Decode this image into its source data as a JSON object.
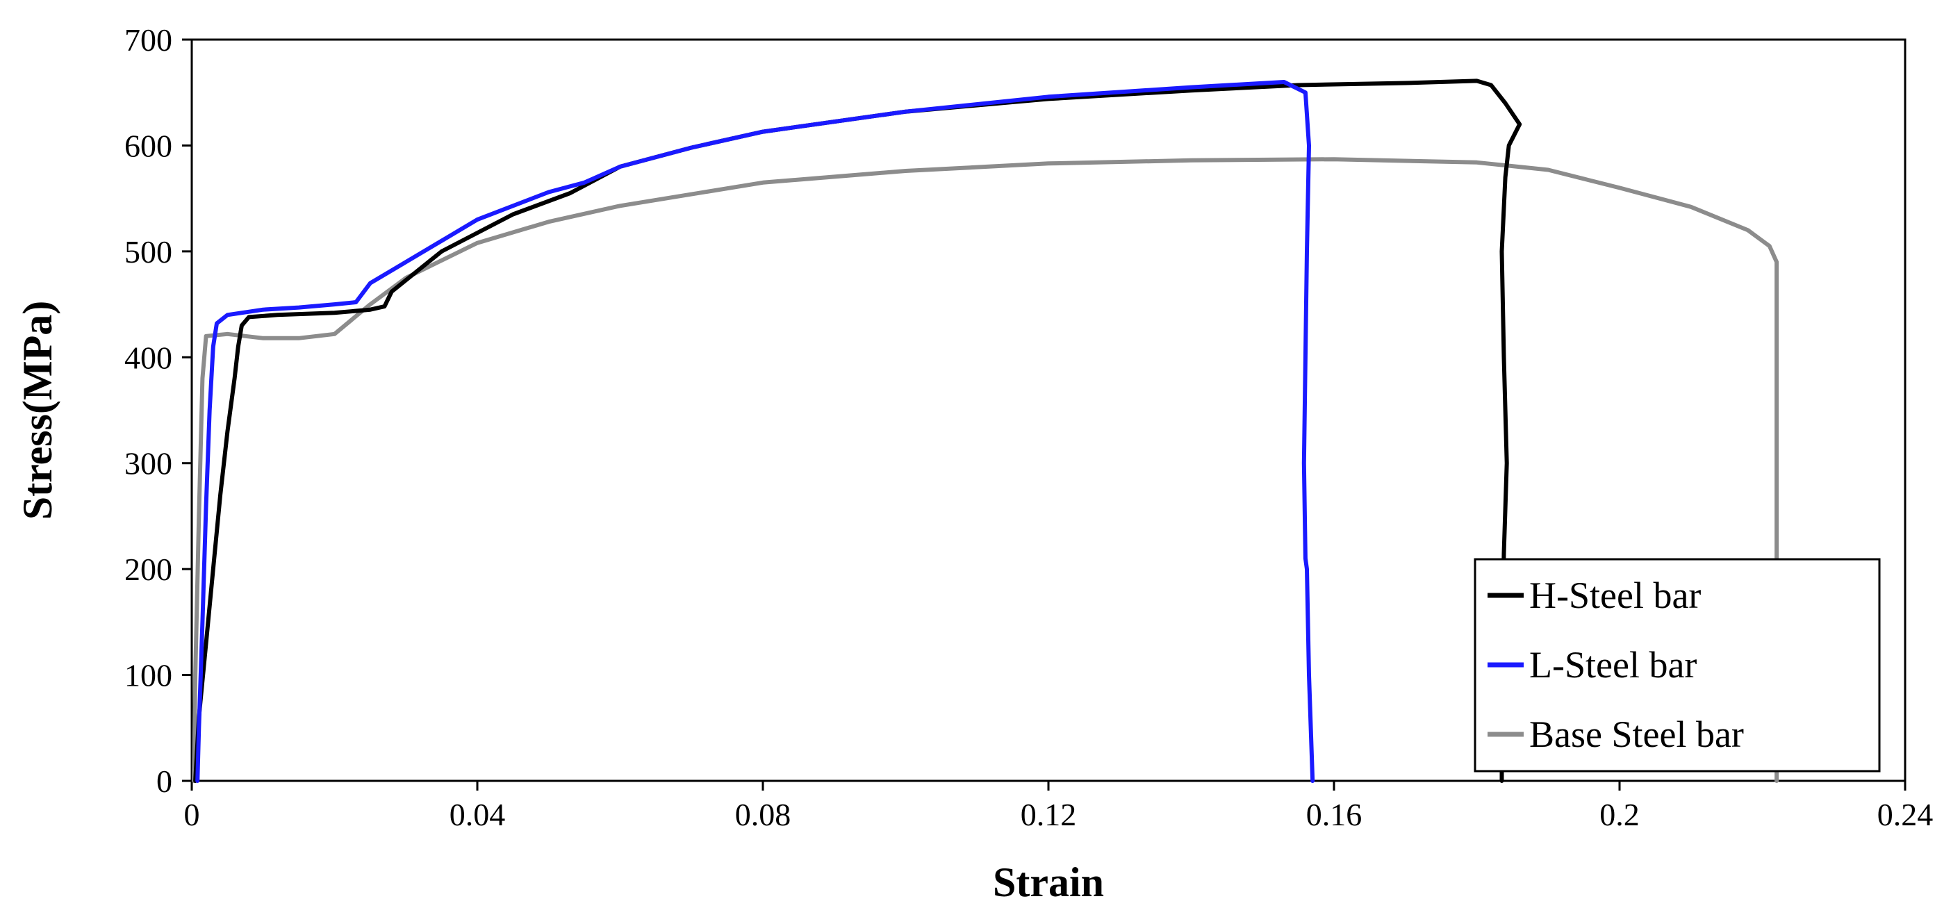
{
  "chart_data": {
    "type": "line",
    "title": "",
    "xlabel": "Strain",
    "ylabel": "Stress(MPa)",
    "xlim": [
      0,
      0.24
    ],
    "ylim": [
      0,
      700
    ],
    "x_ticks": [
      0,
      0.04,
      0.08,
      0.12,
      0.16,
      0.2,
      0.24
    ],
    "x_tick_labels": [
      "0",
      "0.04",
      "0.08",
      "0.12",
      "0.16",
      "0.2",
      "0.24"
    ],
    "y_ticks": [
      0,
      100,
      200,
      300,
      400,
      500,
      600,
      700
    ],
    "y_tick_labels": [
      "0",
      "100",
      "200",
      "300",
      "400",
      "500",
      "600",
      "700"
    ],
    "grid": false,
    "legend_position": "bottom-right",
    "series": [
      {
        "name": "H-Steel bar",
        "color": "#000000",
        "points": [
          [
            0.0005,
            0
          ],
          [
            0.001,
            60
          ],
          [
            0.002,
            130
          ],
          [
            0.003,
            200
          ],
          [
            0.004,
            270
          ],
          [
            0.005,
            330
          ],
          [
            0.006,
            380
          ],
          [
            0.0065,
            410
          ],
          [
            0.007,
            430
          ],
          [
            0.008,
            438
          ],
          [
            0.012,
            440
          ],
          [
            0.02,
            442
          ],
          [
            0.025,
            445
          ],
          [
            0.027,
            448
          ],
          [
            0.028,
            462
          ],
          [
            0.035,
            500
          ],
          [
            0.045,
            535
          ],
          [
            0.053,
            555
          ],
          [
            0.06,
            580
          ],
          [
            0.07,
            598
          ],
          [
            0.08,
            613
          ],
          [
            0.1,
            632
          ],
          [
            0.12,
            644
          ],
          [
            0.14,
            652
          ],
          [
            0.155,
            657
          ],
          [
            0.17,
            659
          ],
          [
            0.18,
            661
          ],
          [
            0.182,
            657
          ],
          [
            0.184,
            640
          ],
          [
            0.186,
            620
          ],
          [
            0.1845,
            600
          ],
          [
            0.184,
            570
          ],
          [
            0.1835,
            500
          ],
          [
            0.1838,
            400
          ],
          [
            0.1842,
            300
          ],
          [
            0.1838,
            215
          ],
          [
            0.1835,
            100
          ],
          [
            0.1835,
            0
          ]
        ]
      },
      {
        "name": "L-Steel bar",
        "color": "#1a1aff",
        "points": [
          [
            0.0008,
            0
          ],
          [
            0.001,
            50
          ],
          [
            0.0015,
            150
          ],
          [
            0.002,
            260
          ],
          [
            0.0025,
            350
          ],
          [
            0.003,
            410
          ],
          [
            0.0035,
            432
          ],
          [
            0.005,
            440
          ],
          [
            0.01,
            445
          ],
          [
            0.015,
            447
          ],
          [
            0.02,
            450
          ],
          [
            0.023,
            452
          ],
          [
            0.025,
            470
          ],
          [
            0.03,
            490
          ],
          [
            0.04,
            530
          ],
          [
            0.05,
            556
          ],
          [
            0.055,
            565
          ],
          [
            0.06,
            580
          ],
          [
            0.07,
            598
          ],
          [
            0.08,
            613
          ],
          [
            0.1,
            632
          ],
          [
            0.12,
            646
          ],
          [
            0.14,
            655
          ],
          [
            0.153,
            660
          ],
          [
            0.1545,
            655
          ],
          [
            0.156,
            650
          ],
          [
            0.1565,
            600
          ],
          [
            0.1562,
            500
          ],
          [
            0.156,
            400
          ],
          [
            0.1558,
            300
          ],
          [
            0.156,
            210
          ],
          [
            0.1562,
            200
          ],
          [
            0.1565,
            100
          ],
          [
            0.157,
            0
          ]
        ]
      },
      {
        "name": "Base Steel bar",
        "color": "#8c8c8c",
        "points": [
          [
            0.0003,
            0
          ],
          [
            0.0005,
            100
          ],
          [
            0.001,
            250
          ],
          [
            0.0015,
            380
          ],
          [
            0.002,
            420
          ],
          [
            0.005,
            422
          ],
          [
            0.01,
            418
          ],
          [
            0.015,
            418
          ],
          [
            0.02,
            422
          ],
          [
            0.025,
            450
          ],
          [
            0.03,
            475
          ],
          [
            0.04,
            508
          ],
          [
            0.05,
            528
          ],
          [
            0.06,
            543
          ],
          [
            0.08,
            565
          ],
          [
            0.1,
            576
          ],
          [
            0.12,
            583
          ],
          [
            0.14,
            586
          ],
          [
            0.16,
            587
          ],
          [
            0.18,
            584
          ],
          [
            0.19,
            577
          ],
          [
            0.2,
            560
          ],
          [
            0.21,
            542
          ],
          [
            0.218,
            520
          ],
          [
            0.221,
            505
          ],
          [
            0.222,
            490
          ],
          [
            0.222,
            300
          ],
          [
            0.222,
            0
          ]
        ]
      }
    ]
  }
}
